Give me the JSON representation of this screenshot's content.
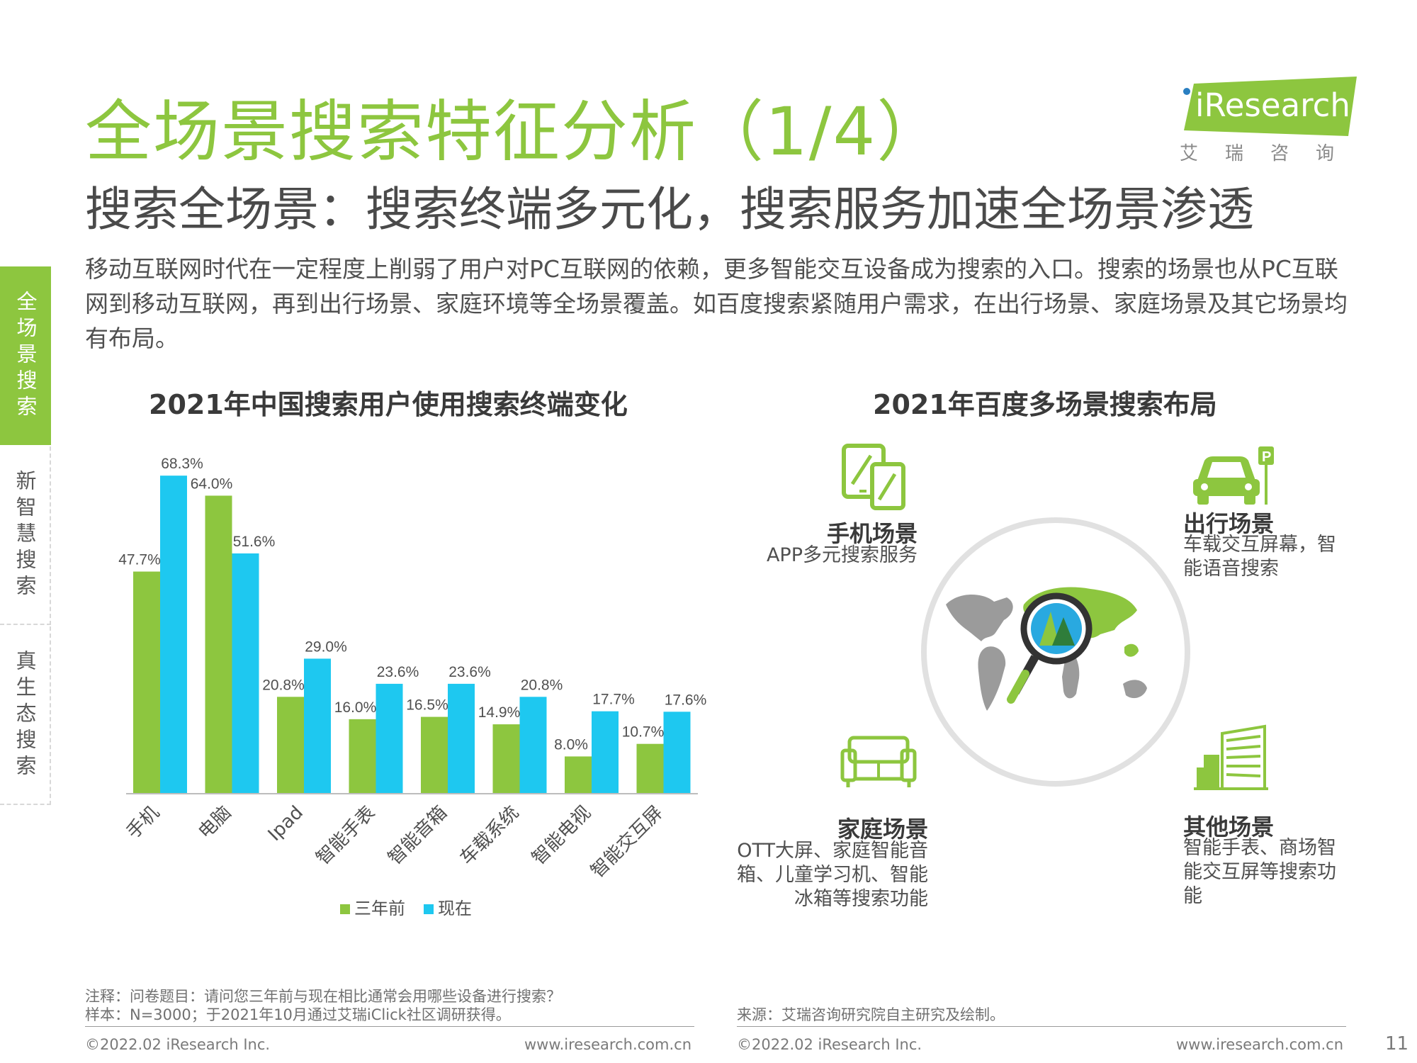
{
  "header": {
    "title": "全场景搜索特征分析（1/4）",
    "subtitle": "搜索全场景：搜索终端多元化，搜索服务加速全场景渗透",
    "intro": "移动互联网时代在一定程度上削弱了用户对PC互联网的依赖，更多智能交互设备成为搜索的入口。搜索的场景也从PC互联网到移动互联网，再到出行场景、家庭环境等全场景覆盖。如百度搜索紧随用户需求，在出行场景、家庭场景及其它场景均有布局。"
  },
  "logo": {
    "word": "iResearch",
    "cn": "艾瑞咨询"
  },
  "side_tabs": [
    "全场景搜索",
    "新智慧搜索",
    "真生态搜索"
  ],
  "colors": {
    "green": "#8dc63f",
    "blue": "#1ec8f0",
    "gray_icon": "#9b9b9b"
  },
  "left_chart_title": "2021年中国搜索用户使用搜索终端变化",
  "right_title": "2021年百度多场景搜索布局",
  "chart_data": {
    "type": "bar",
    "categories": [
      "手机",
      "电脑",
      "Ipad",
      "智能手表",
      "智能音箱",
      "车载系统",
      "智能电视",
      "智能交互屏"
    ],
    "series": [
      {
        "name": "三年前",
        "values": [
          47.7,
          64.0,
          20.8,
          16.0,
          16.5,
          14.9,
          8.0,
          10.7
        ]
      },
      {
        "name": "现在",
        "values": [
          68.3,
          51.6,
          29.0,
          23.6,
          23.6,
          20.8,
          17.7,
          17.6
        ]
      }
    ],
    "value_labels": {
      "三年前": [
        "47.7%",
        "64.0%",
        "20.8%",
        "16.0%",
        "16.5%",
        "14.9%",
        "8.0%",
        "10.7%"
      ],
      "现在": [
        "68.3%",
        "51.6%",
        "29.0%",
        "23.6%",
        "23.6%",
        "20.8%",
        "17.7%",
        "17.6%"
      ]
    },
    "ylim": [
      0,
      70
    ],
    "grid": false,
    "legend_position": "bottom"
  },
  "scenes": {
    "phone": {
      "title": "手机场景",
      "desc": "APP多元搜索服务",
      "icon": "phone-tablet-icon"
    },
    "travel": {
      "title": "出行场景",
      "desc": [
        "车载交互屏幕，智",
        "能语音搜索"
      ],
      "icon": "car-parking-icon"
    },
    "home": {
      "title": "家庭场景",
      "desc": [
        "OTT大屏、家庭智能音",
        "箱、儿童学习机、智能",
        "冰箱等搜索功能"
      ],
      "icon": "sofa-icon"
    },
    "other": {
      "title": "其他场景",
      "desc": [
        "智能手表、商场智",
        "能交互屏等搜索功",
        "能"
      ],
      "icon": "building-icon"
    },
    "center_icon": "world-map-magnifier-icon"
  },
  "footer": {
    "note1": "注释：问卷题目：请问您三年前与现在相比通常会用哪些设备进行搜索？",
    "note2": "样本：N=3000；于2021年10月通过艾瑞iClick社区调研获得。",
    "source": "来源：艾瑞咨询研究院自主研究及绘制。",
    "copyright_left": "©2022.02 iResearch Inc.",
    "url_left": "www.iresearch.com.cn",
    "copyright_right": "©2022.02 iResearch Inc.",
    "url_right": "www.iresearch.com.cn",
    "page": "11"
  }
}
